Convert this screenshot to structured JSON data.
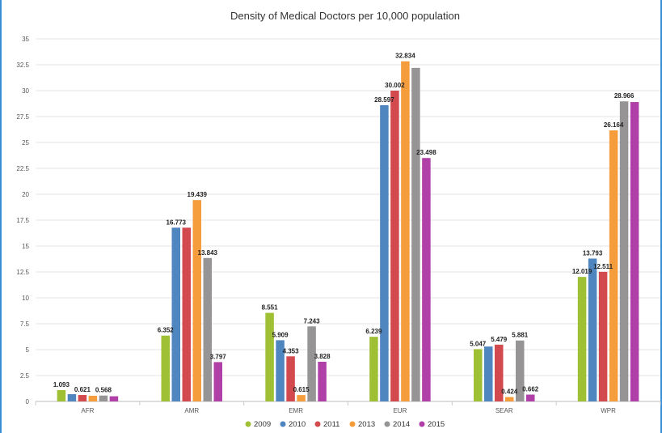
{
  "chart_data": {
    "type": "bar",
    "title": "Density of Medical Doctors per 10,000 population",
    "xlabel": "",
    "ylabel": "",
    "ylim": [
      0,
      35
    ],
    "yticks": [
      "0",
      "2.5",
      "5",
      "7.5",
      "10",
      "12.5",
      "15",
      "17.5",
      "20",
      "22.5",
      "25",
      "27.5",
      "30",
      "32.5",
      "35"
    ],
    "grid": true,
    "legend_position": "bottom",
    "categories": [
      "AFR",
      "AMR",
      "EMR",
      "EUR",
      "SEAR",
      "WPR"
    ],
    "series": [
      {
        "name": "2009",
        "color": "#9fbf34",
        "values": [
          1.093,
          6.352,
          8.551,
          6.239,
          5.047,
          12.019
        ],
        "labels": [
          "1.093",
          "6.352",
          "8.551",
          "6.239",
          "5.047",
          "12.019"
        ]
      },
      {
        "name": "2010",
        "color": "#4f86c0",
        "values": [
          0.7,
          16.773,
          5.909,
          28.597,
          5.3,
          13.793
        ],
        "labels": [
          "",
          "16.773",
          "5.909",
          "28.597",
          "",
          "13.793"
        ]
      },
      {
        "name": "2011",
        "color": "#d24a4e",
        "values": [
          0.621,
          16.773,
          4.353,
          30.002,
          5.479,
          12.511
        ],
        "labels": [
          "0.621",
          "",
          "4.353",
          "30.002",
          "5.479",
          "12.511"
        ]
      },
      {
        "name": "2013",
        "color": "#f59d3d",
        "values": [
          0.55,
          19.439,
          0.615,
          32.834,
          0.424,
          26.164
        ],
        "labels": [
          "",
          "19.439",
          "0.615",
          "32.834",
          "0.424",
          "26.164"
        ]
      },
      {
        "name": "2014",
        "color": "#969494",
        "values": [
          0.568,
          13.843,
          7.243,
          32.2,
          5.881,
          28.966
        ],
        "labels": [
          "0.568",
          "13.843",
          "7.243",
          "",
          "5.881",
          "28.966"
        ]
      },
      {
        "name": "2015",
        "color": "#b03fa8",
        "values": [
          0.5,
          3.797,
          3.828,
          23.498,
          0.662,
          28.9
        ],
        "labels": [
          "",
          "3.797",
          "3.828",
          "23.498",
          "0.662",
          ""
        ]
      }
    ]
  }
}
